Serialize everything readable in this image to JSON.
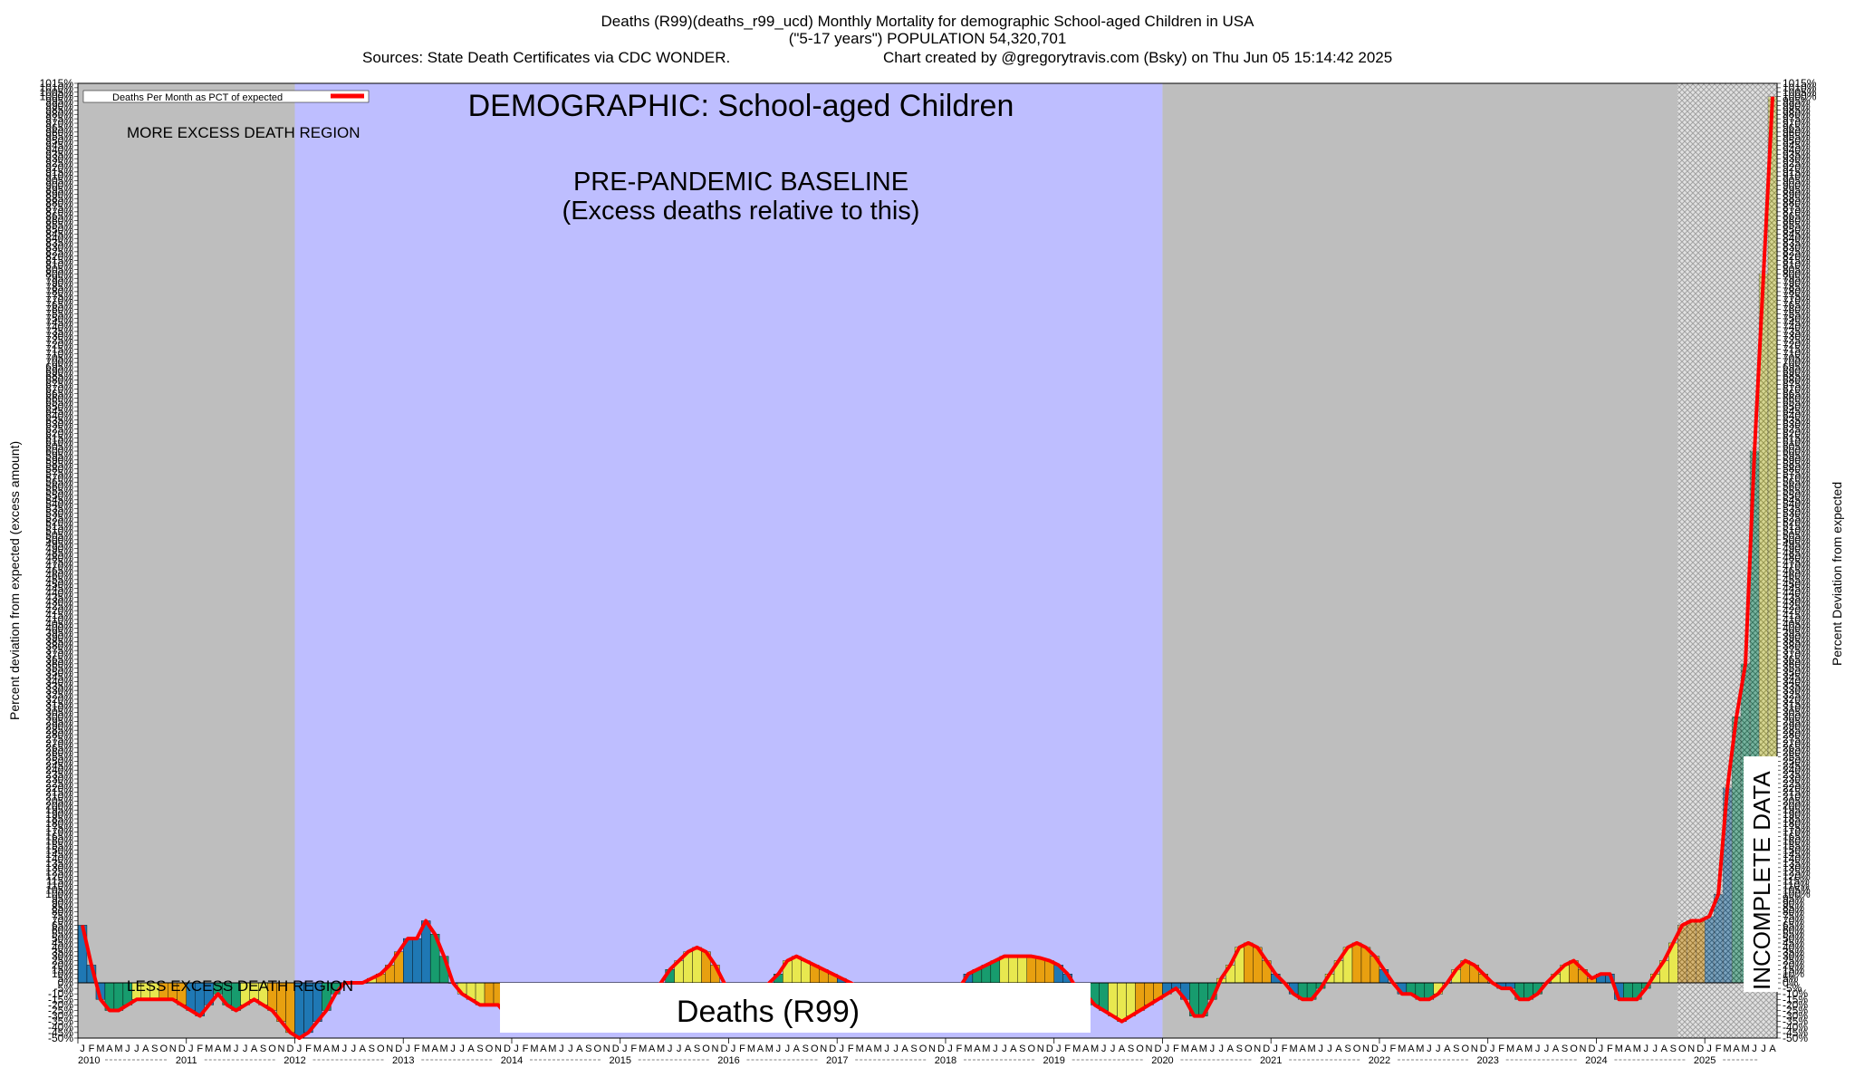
{
  "header": {
    "line1": "Deaths (R99)(deaths_r99_ucd) Monthly Mortality for demographic School-aged Children in USA",
    "line2": "(\"5-17 years\") POPULATION 54,320,701",
    "sources": "Sources: State Death Certificates via CDC WONDER.",
    "credit": "Chart created by @gregorytravis.com (Bsky) on Thu Jun 05 15:14:42 2025"
  },
  "legend": {
    "label": "Deaths Per Month as PCT of expected",
    "line_color": "#ff0000"
  },
  "annotations": {
    "demographic": "DEMOGRAPHIC: School-aged Children",
    "more_excess": "MORE EXCESS DEATH REGION",
    "less_excess": "LESS EXCESS DEATH REGION",
    "baseline_title": "PRE-PANDEMIC BASELINE",
    "baseline_sub": "(Excess deaths relative to this)",
    "incomplete": "INCOMPLETE DATA",
    "cause_box": "Deaths (R99)"
  },
  "colors": {
    "baseline_region": "#bebeff",
    "other_region": "#bebebe",
    "line": "#ff0000",
    "bar_palette": [
      "#1f78b4",
      "#179c6e",
      "#e8e84f",
      "#e8a010"
    ]
  },
  "chart_data": {
    "type": "bar",
    "title": "Deaths (R99)(deaths_r99_ucd) Monthly Mortality for demographic School-aged Children in USA",
    "ylabel_left": "Percent deviation from expected (excess amount)",
    "ylabel_right": "Percent Deviation from expected",
    "ylim": [
      -50,
      1015
    ],
    "baseline_region": {
      "start": "2012-01",
      "end": "2019-12"
    },
    "incomplete_region": {
      "start": "2024-10",
      "end": "2025-05"
    },
    "month_letters": [
      "J",
      "F",
      "M",
      "A",
      "M",
      "J",
      "J",
      "A",
      "S",
      "O",
      "N",
      "D"
    ],
    "years": [
      "2010",
      "2011",
      "2012",
      "2013",
      "2014",
      "2015",
      "2016",
      "2017",
      "2018",
      "2019",
      "2020",
      "2021",
      "2022",
      "2023",
      "2024",
      "2025"
    ],
    "last_month_index": 4,
    "series": [
      {
        "values": [
          65,
          20,
          -15,
          -25,
          -25,
          -20,
          -15,
          -15,
          -15,
          -15,
          -15,
          -20,
          -25,
          -30,
          -20,
          -10,
          -20,
          -25,
          -20,
          -15,
          -20,
          -25,
          -35,
          -45,
          -50,
          -45,
          -35,
          -25,
          -10,
          0,
          0,
          0,
          5,
          10,
          20,
          35,
          50,
          50,
          70,
          55,
          30,
          0,
          -10,
          -15,
          -20,
          -20,
          -20,
          -30,
          -40,
          -40,
          -40,
          -35,
          -35,
          -30,
          -30,
          -30,
          -30,
          -30,
          -30,
          -30,
          -25,
          -25,
          -20,
          -10,
          0,
          15,
          25,
          35,
          40,
          35,
          20,
          0,
          -15,
          -20,
          -20,
          -10,
          0,
          10,
          25,
          30,
          25,
          20,
          15,
          10,
          5,
          0,
          -5,
          -10,
          -15,
          -15,
          -15,
          -15,
          -15,
          -15,
          -15,
          -15,
          -10,
          -5,
          10,
          15,
          20,
          25,
          30,
          30,
          30,
          30,
          28,
          25,
          20,
          10,
          -5,
          -10,
          -20,
          -25,
          -30,
          -35,
          -30,
          -25,
          -20,
          -15,
          -10,
          -5,
          -15,
          -30,
          -30,
          -15,
          5,
          20,
          40,
          45,
          40,
          25,
          10,
          0,
          -10,
          -15,
          -15,
          -5,
          10,
          25,
          40,
          45,
          40,
          30,
          15,
          0,
          -10,
          -10,
          -15,
          -15,
          -10,
          0,
          15,
          25,
          20,
          10,
          0,
          -5,
          -5,
          -15,
          -15,
          -10,
          0,
          10,
          20,
          25,
          15,
          5,
          10,
          10,
          -15,
          -15,
          -15,
          -5,
          10,
          25,
          45,
          65,
          70,
          70,
          75,
          100,
          220,
          300,
          360,
          600,
          800,
          1000
        ]
      }
    ]
  }
}
